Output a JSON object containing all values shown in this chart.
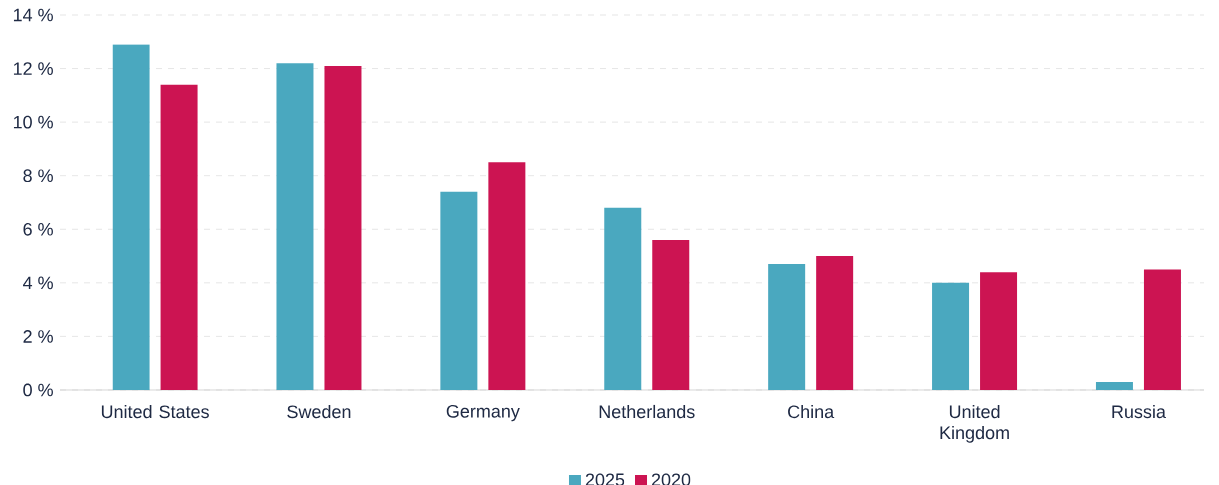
{
  "chart_data": {
    "type": "bar",
    "categories": [
      "United States",
      "Sweden",
      "Germany",
      "Netherlands",
      "China",
      "United Kingdom",
      "Russia"
    ],
    "series": [
      {
        "name": "2025",
        "color": "#4aa8bf",
        "values": [
          12.9,
          12.2,
          7.4,
          6.8,
          4.7,
          4.0,
          0.3
        ]
      },
      {
        "name": "2020",
        "color": "#cc1452",
        "values": [
          11.4,
          12.1,
          8.5,
          5.6,
          5.0,
          4.4,
          4.5
        ]
      }
    ],
    "ylim": [
      0,
      14
    ],
    "yticks": [
      {
        "value": 0,
        "label": "0 %"
      },
      {
        "value": 2,
        "label": "2 %"
      },
      {
        "value": 4,
        "label": "4 %"
      },
      {
        "value": 6,
        "label": "6 %"
      },
      {
        "value": 8,
        "label": "8 %"
      },
      {
        "value": 10,
        "label": "10 %"
      },
      {
        "value": 12,
        "label": "12 %"
      },
      {
        "value": 14,
        "label": "14 %"
      }
    ],
    "grid": "y",
    "legend": "bottom"
  }
}
